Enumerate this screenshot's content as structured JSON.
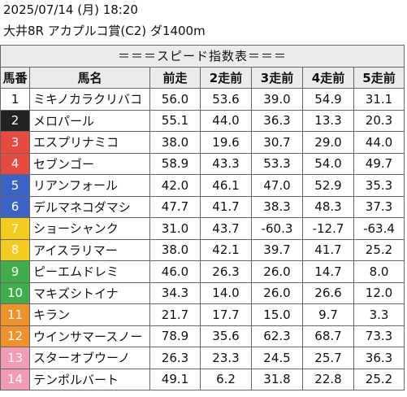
{
  "header": {
    "date_line": "2025/07/14 (月) 18:20",
    "race_line": "大井8R アカプルコ賞(C2) ダ1400m"
  },
  "table": {
    "banner": "＝＝＝スピード指数表＝＝＝",
    "columns": [
      "馬番",
      "馬名",
      "前走",
      "2走前",
      "3走前",
      "4走前",
      "5走前"
    ],
    "rows": [
      {
        "no": "1",
        "name": "ミキノカラクリバコ",
        "vals": [
          "56.0",
          "53.6",
          "39.0",
          "54.9",
          "31.1"
        ],
        "bg": "#ffffff",
        "fg": "#111111"
      },
      {
        "no": "2",
        "name": "メロパール",
        "vals": [
          "55.1",
          "44.0",
          "36.3",
          "13.3",
          "20.3"
        ],
        "bg": "#222222",
        "fg": "#ffffff"
      },
      {
        "no": "3",
        "name": "エスプリナミコ",
        "vals": [
          "38.0",
          "19.6",
          "30.7",
          "29.0",
          "44.0"
        ],
        "bg": "#e84a3f",
        "fg": "#ffffff"
      },
      {
        "no": "4",
        "name": "セブンゴー",
        "vals": [
          "58.9",
          "43.3",
          "53.3",
          "54.0",
          "49.7"
        ],
        "bg": "#e84a3f",
        "fg": "#ffffff"
      },
      {
        "no": "5",
        "name": "リアンフォール",
        "vals": [
          "42.0",
          "46.1",
          "47.0",
          "52.9",
          "35.3"
        ],
        "bg": "#3a63c8",
        "fg": "#ffffff"
      },
      {
        "no": "6",
        "name": "デルマネコダマシ",
        "vals": [
          "47.7",
          "41.7",
          "38.3",
          "48.3",
          "37.3"
        ],
        "bg": "#3a63c8",
        "fg": "#ffffff"
      },
      {
        "no": "7",
        "name": "ショーシャンク",
        "vals": [
          "31.0",
          "43.7",
          "-60.3",
          "-12.7",
          "-63.4"
        ],
        "bg": "#f2cd1f",
        "fg": "#ffffff"
      },
      {
        "no": "8",
        "name": "アイスラリマー",
        "vals": [
          "38.0",
          "42.1",
          "39.7",
          "41.7",
          "25.2"
        ],
        "bg": "#f2cd1f",
        "fg": "#ffffff"
      },
      {
        "no": "9",
        "name": "ピーエムドレミ",
        "vals": [
          "46.0",
          "26.3",
          "26.0",
          "14.7",
          "8.0"
        ],
        "bg": "#3fae4a",
        "fg": "#ffffff"
      },
      {
        "no": "10",
        "name": "マキズシトイナ",
        "vals": [
          "34.3",
          "14.0",
          "26.0",
          "26.6",
          "12.0"
        ],
        "bg": "#3fae4a",
        "fg": "#ffffff"
      },
      {
        "no": "11",
        "name": "キラン",
        "vals": [
          "21.7",
          "17.7",
          "15.0",
          "9.7",
          "3.3"
        ],
        "bg": "#f0922b",
        "fg": "#ffffff"
      },
      {
        "no": "12",
        "name": "ウインサマースノー",
        "vals": [
          "78.9",
          "35.6",
          "62.3",
          "68.7",
          "73.3"
        ],
        "bg": "#f0922b",
        "fg": "#ffffff"
      },
      {
        "no": "13",
        "name": "スターオブウーノ",
        "vals": [
          "26.3",
          "23.3",
          "24.5",
          "25.7",
          "36.3"
        ],
        "bg": "#f19bb4",
        "fg": "#ffffff"
      },
      {
        "no": "14",
        "name": "テンポルバート",
        "vals": [
          "49.1",
          "6.2",
          "31.8",
          "22.8",
          "25.2"
        ],
        "bg": "#f19bb4",
        "fg": "#ffffff"
      }
    ]
  }
}
